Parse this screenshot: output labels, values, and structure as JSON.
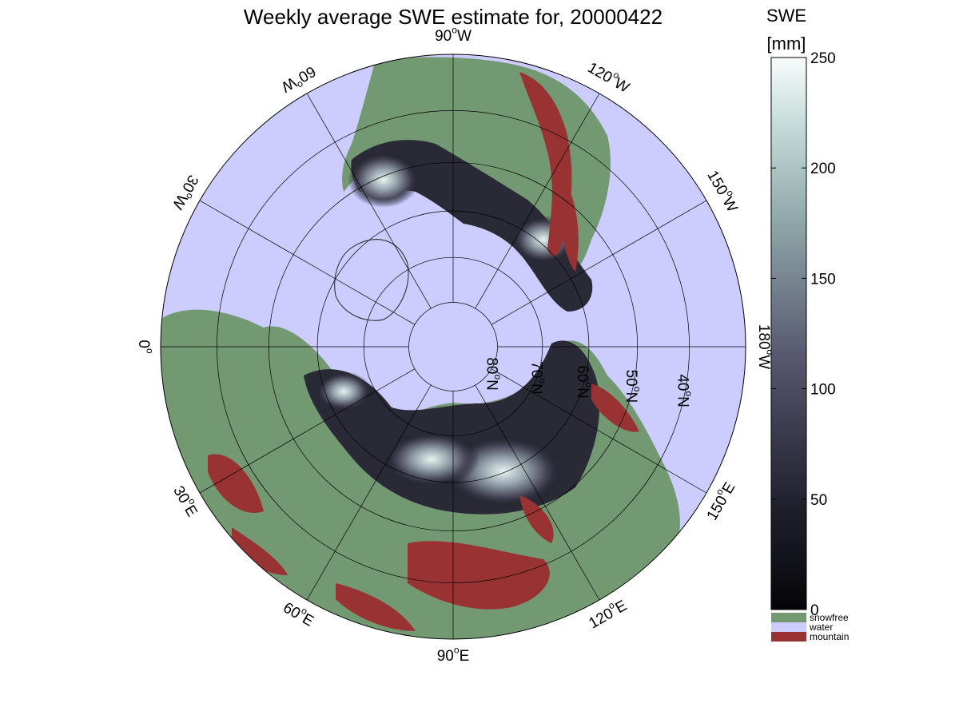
{
  "title": "Weekly average SWE estimate for, 20000422",
  "map": {
    "projection": "north-polar-stereographic",
    "center_lon_label": "90°W at top",
    "colors": {
      "water": "#ccccff",
      "snowfree": "#739973",
      "mountain": "#993333",
      "swe_low": "#0d0d12",
      "swe_high": "#f5fafa"
    },
    "meridians": [
      {
        "base": "90",
        "sup": "o",
        "dir": "W"
      },
      {
        "base": "120",
        "sup": "o",
        "dir": "W"
      },
      {
        "base": "150",
        "sup": "o",
        "dir": "W"
      },
      {
        "base": "180",
        "sup": "o",
        "dir": "W"
      },
      {
        "base": "150",
        "sup": "o",
        "dir": "E"
      },
      {
        "base": "120",
        "sup": "o",
        "dir": "E"
      },
      {
        "base": "90",
        "sup": "o",
        "dir": "E"
      },
      {
        "base": "60",
        "sup": "o",
        "dir": "E"
      },
      {
        "base": "30",
        "sup": "o",
        "dir": "E"
      },
      {
        "base": "0",
        "sup": "o",
        "dir": ""
      },
      {
        "base": "30",
        "sup": "o",
        "dir": "W"
      },
      {
        "base": "60",
        "sup": "o",
        "dir": "W"
      }
    ],
    "parallels": [
      {
        "base": "80",
        "sup": "o",
        "dir": "N"
      },
      {
        "base": "70",
        "sup": "o",
        "dir": "N"
      },
      {
        "base": "60",
        "sup": "o",
        "dir": "N"
      },
      {
        "base": "50",
        "sup": "o",
        "dir": "N"
      },
      {
        "base": "40",
        "sup": "o",
        "dir": "N"
      }
    ]
  },
  "colorbar": {
    "title_line1": "SWE",
    "title_line2": "[mm]",
    "ticks": [
      "0",
      "50",
      "100",
      "150",
      "200",
      "250"
    ],
    "range": [
      0,
      250
    ],
    "legend": [
      {
        "label": "snowfree",
        "color": "#739973"
      },
      {
        "label": "water",
        "color": "#ccccff"
      },
      {
        "label": "mountain",
        "color": "#993333"
      }
    ]
  }
}
